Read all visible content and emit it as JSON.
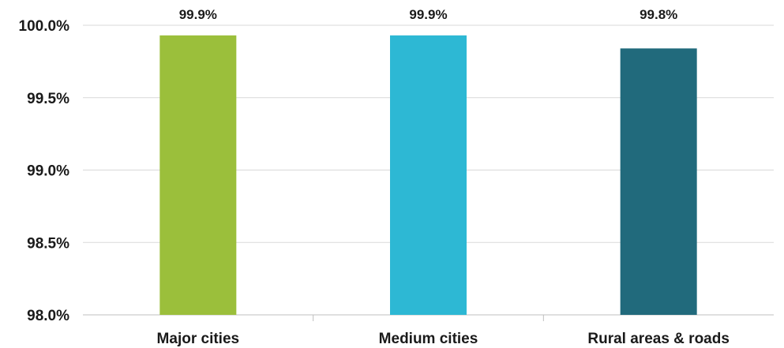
{
  "chart_data": {
    "type": "bar",
    "categories": [
      "Major cities",
      "Medium cities",
      "Rural areas & roads"
    ],
    "values": [
      99.93,
      99.93,
      99.84
    ],
    "data_labels": [
      "99.9%",
      "99.9%",
      "99.8%"
    ],
    "colors": [
      "#9bbf3b",
      "#2db8d4",
      "#216a7c"
    ],
    "ylim": [
      98.0,
      100.0
    ],
    "yticks": [
      98.0,
      98.5,
      99.0,
      99.5,
      100.0
    ],
    "ytick_labels": [
      "98.0%",
      "98.5%",
      "99.0%",
      "99.5%",
      "100.0%"
    ],
    "grid": true,
    "legend": "none",
    "title": "",
    "xlabel": "",
    "ylabel": ""
  }
}
